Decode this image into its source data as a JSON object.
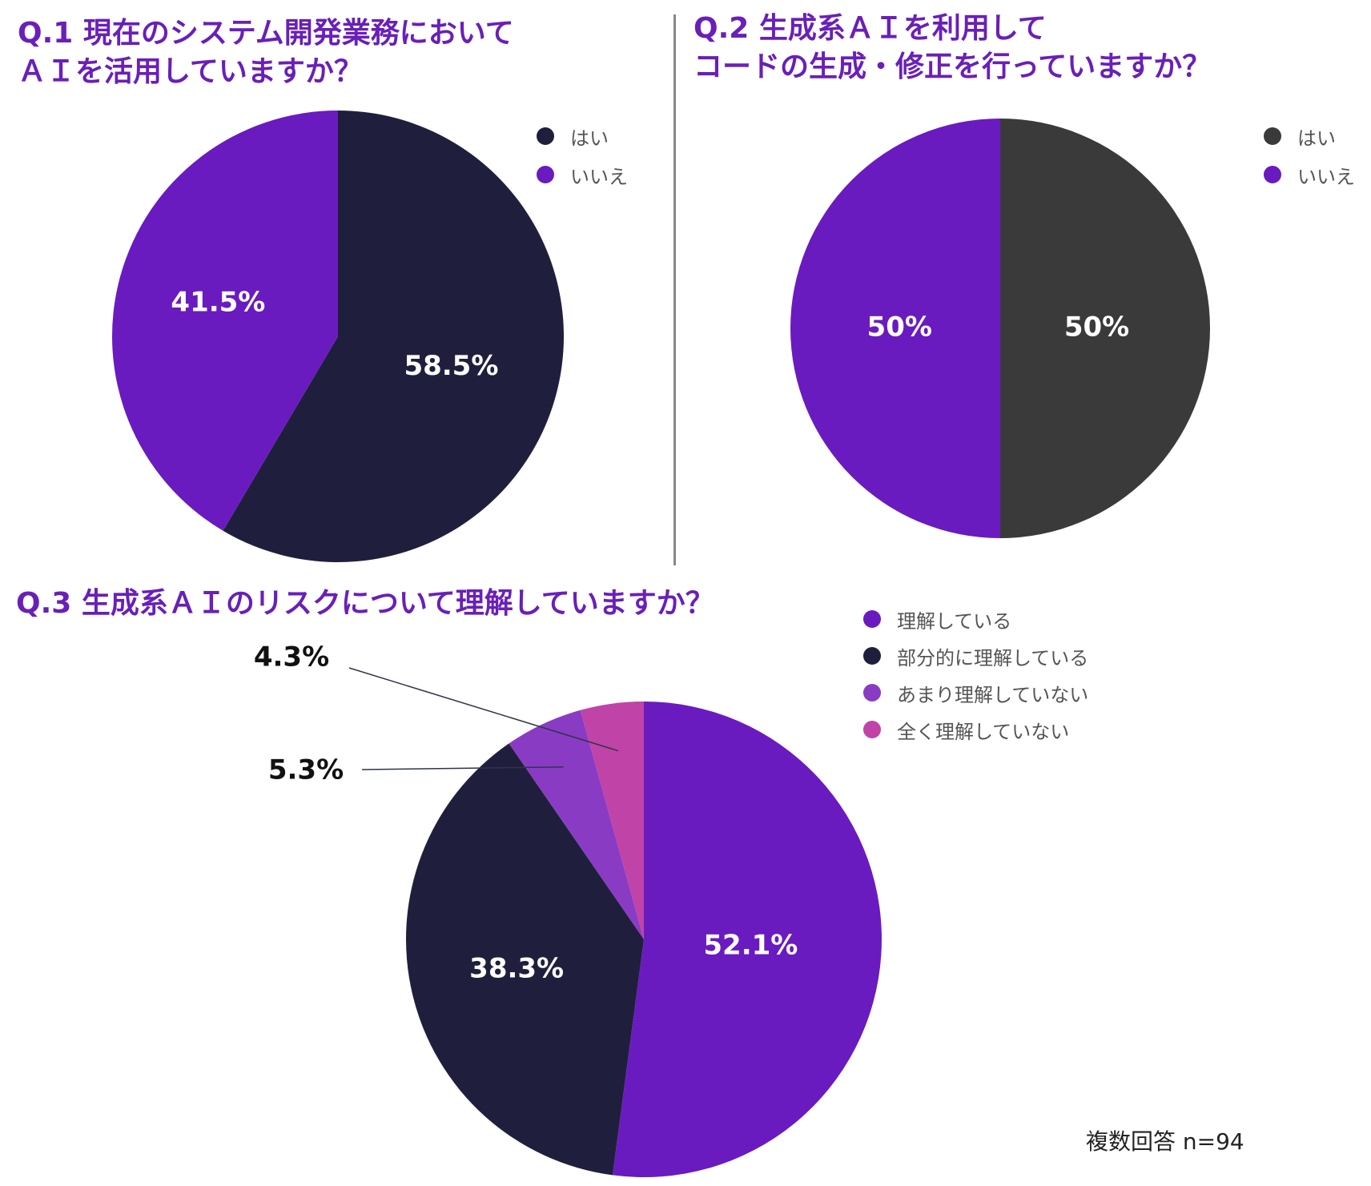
{
  "colors": {
    "title": "#6a1fb8",
    "divider": "#888888",
    "leader": "#2f3548"
  },
  "chart_data": [
    {
      "type": "pie",
      "title": "Q.1 現在のシステム開発業務において\nＡＩを活用していますか？",
      "labels": [
        "はい",
        "いいえ"
      ],
      "values": [
        58.5,
        41.5
      ],
      "value_labels": [
        "58.5%",
        "41.5%"
      ],
      "colors": [
        "#1f1f3d",
        "#6a1bbf"
      ],
      "legend": "top-right"
    },
    {
      "type": "pie",
      "title": "Q.2 生成系ＡＩを利用して\nコードの生成・修正を行っていますか？",
      "labels": [
        "はい",
        "いいえ"
      ],
      "values": [
        50,
        50
      ],
      "value_labels": [
        "50%",
        "50%"
      ],
      "colors": [
        "#3a3a3a",
        "#6a1bbf"
      ],
      "legend": "top-right"
    },
    {
      "type": "pie",
      "title": "Q.3 生成系ＡＩのリスクについて理解していますか？",
      "labels": [
        "理解している",
        "部分的に理解している",
        "あまり理解していない",
        "全く理解していない"
      ],
      "values": [
        52.1,
        38.3,
        5.3,
        4.3
      ],
      "value_labels": [
        "52.1%",
        "38.3%",
        "5.3%",
        "4.3%"
      ],
      "colors": [
        "#6a1bbf",
        "#1f1f3d",
        "#8a3bc4",
        "#c043a8"
      ],
      "legend_colors": [
        "#6a1bbf",
        "#1f1f3d",
        "#8a3bc4",
        "#c043a8"
      ],
      "legend": "top-right",
      "note": "複数回答 n=94"
    }
  ]
}
